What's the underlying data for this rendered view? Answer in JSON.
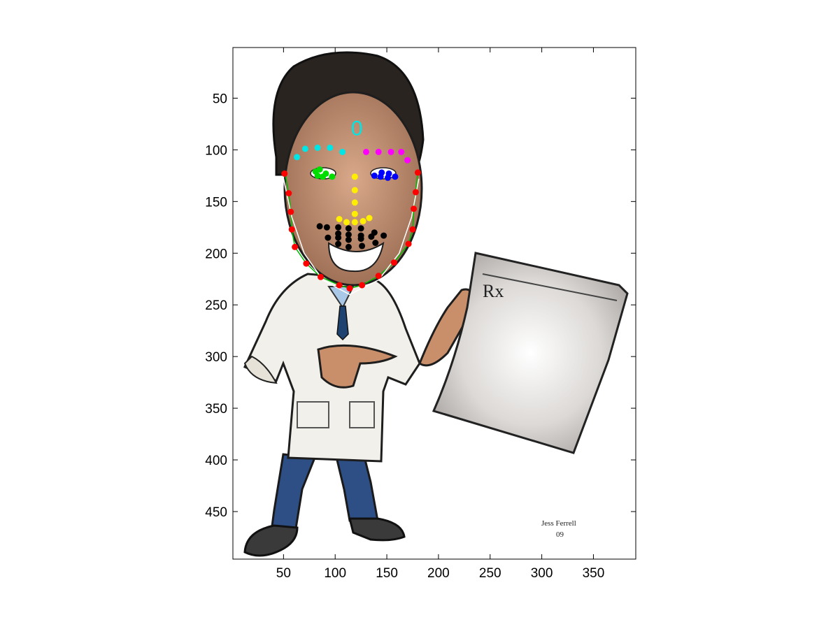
{
  "chart_data": {
    "type": "scatter",
    "title": "",
    "xlabel": "",
    "ylabel": "",
    "xlim": [
      1,
      391
    ],
    "ylim": [
      496,
      1
    ],
    "y_reversed": true,
    "grid": false,
    "x_ticks": [
      50,
      100,
      150,
      200,
      250,
      300,
      350
    ],
    "y_ticks": [
      50,
      100,
      150,
      200,
      250,
      300,
      350,
      400,
      450
    ],
    "background": "cartoon image of a doctor in a white coat holding an Rx prescription sheet",
    "image_text": {
      "rx": "Rx",
      "signature_line1": "Jess Ferrell",
      "signature_line2": "09"
    },
    "landmark_label": {
      "text": "0",
      "x": 121,
      "y": 79,
      "color": "#00e5e5"
    },
    "series": [
      {
        "color": "#ff0000",
        "values": [
          {
            "x": 51,
            "y": 123
          },
          {
            "x": 55,
            "y": 142
          },
          {
            "x": 57,
            "y": 160
          },
          {
            "x": 58,
            "y": 177
          },
          {
            "x": 61,
            "y": 194
          },
          {
            "x": 72,
            "y": 210
          },
          {
            "x": 86,
            "y": 223
          },
          {
            "x": 104,
            "y": 231
          },
          {
            "x": 114,
            "y": 234
          },
          {
            "x": 126,
            "y": 231
          },
          {
            "x": 142,
            "y": 222
          },
          {
            "x": 157,
            "y": 209
          },
          {
            "x": 171,
            "y": 191
          },
          {
            "x": 175,
            "y": 177
          },
          {
            "x": 176,
            "y": 157
          },
          {
            "x": 178,
            "y": 141
          },
          {
            "x": 180,
            "y": 122
          }
        ]
      },
      {
        "color": "#00e5e5",
        "values": [
          {
            "x": 63,
            "y": 107
          },
          {
            "x": 71,
            "y": 99
          },
          {
            "x": 83,
            "y": 98
          },
          {
            "x": 95,
            "y": 98
          },
          {
            "x": 107,
            "y": 102
          }
        ]
      },
      {
        "color": "#ff00ff",
        "values": [
          {
            "x": 130,
            "y": 102
          },
          {
            "x": 142,
            "y": 102
          },
          {
            "x": 154,
            "y": 102
          },
          {
            "x": 164,
            "y": 102
          },
          {
            "x": 170,
            "y": 110
          }
        ]
      },
      {
        "color": "#00dd00",
        "values": [
          {
            "x": 81,
            "y": 121
          },
          {
            "x": 85,
            "y": 119
          },
          {
            "x": 91,
            "y": 123
          },
          {
            "x": 97,
            "y": 126
          },
          {
            "x": 88,
            "y": 126
          },
          {
            "x": 83,
            "y": 125
          }
        ]
      },
      {
        "color": "#0000ff",
        "values": [
          {
            "x": 138,
            "y": 125
          },
          {
            "x": 145,
            "y": 122
          },
          {
            "x": 152,
            "y": 123
          },
          {
            "x": 158,
            "y": 126
          },
          {
            "x": 151,
            "y": 127
          },
          {
            "x": 144,
            "y": 126
          }
        ]
      },
      {
        "color": "#ffee00",
        "values": [
          {
            "x": 119,
            "y": 126
          },
          {
            "x": 119,
            "y": 139
          },
          {
            "x": 119,
            "y": 151
          },
          {
            "x": 119,
            "y": 162
          },
          {
            "x": 104,
            "y": 167
          },
          {
            "x": 111,
            "y": 170
          },
          {
            "x": 119,
            "y": 170
          },
          {
            "x": 127,
            "y": 169
          },
          {
            "x": 133,
            "y": 166
          }
        ]
      },
      {
        "color": "#000000",
        "values": [
          {
            "x": 85,
            "y": 174
          },
          {
            "x": 92,
            "y": 175
          },
          {
            "x": 103,
            "y": 175
          },
          {
            "x": 113,
            "y": 176
          },
          {
            "x": 125,
            "y": 176
          },
          {
            "x": 138,
            "y": 180
          },
          {
            "x": 147,
            "y": 183
          },
          {
            "x": 139,
            "y": 190
          },
          {
            "x": 126,
            "y": 193
          },
          {
            "x": 113,
            "y": 194
          },
          {
            "x": 103,
            "y": 191
          },
          {
            "x": 93,
            "y": 185
          },
          {
            "x": 103,
            "y": 181
          },
          {
            "x": 113,
            "y": 182
          },
          {
            "x": 125,
            "y": 183
          },
          {
            "x": 135,
            "y": 184
          },
          {
            "x": 125,
            "y": 186
          },
          {
            "x": 113,
            "y": 187
          },
          {
            "x": 103,
            "y": 185
          }
        ]
      }
    ],
    "curves": [
      {
        "color": "#00bb00",
        "points": [
          {
            "x": 51,
            "y": 120
          },
          {
            "x": 55,
            "y": 142
          },
          {
            "x": 57,
            "y": 160
          },
          {
            "x": 58,
            "y": 177
          },
          {
            "x": 61,
            "y": 194
          },
          {
            "x": 72,
            "y": 210
          },
          {
            "x": 86,
            "y": 223
          },
          {
            "x": 104,
            "y": 231
          },
          {
            "x": 114,
            "y": 234
          },
          {
            "x": 126,
            "y": 231
          },
          {
            "x": 142,
            "y": 222
          },
          {
            "x": 157,
            "y": 209
          },
          {
            "x": 171,
            "y": 191
          },
          {
            "x": 175,
            "y": 177
          },
          {
            "x": 176,
            "y": 157
          },
          {
            "x": 178,
            "y": 141
          },
          {
            "x": 180,
            "y": 120
          }
        ]
      },
      {
        "color": "#ffffff",
        "points": [
          {
            "x": 50,
            "y": 128
          },
          {
            "x": 58,
            "y": 165
          },
          {
            "x": 70,
            "y": 200
          },
          {
            "x": 88,
            "y": 226
          },
          {
            "x": 114,
            "y": 240
          },
          {
            "x": 142,
            "y": 226
          },
          {
            "x": 162,
            "y": 200
          },
          {
            "x": 174,
            "y": 165
          },
          {
            "x": 181,
            "y": 128
          }
        ]
      }
    ]
  }
}
